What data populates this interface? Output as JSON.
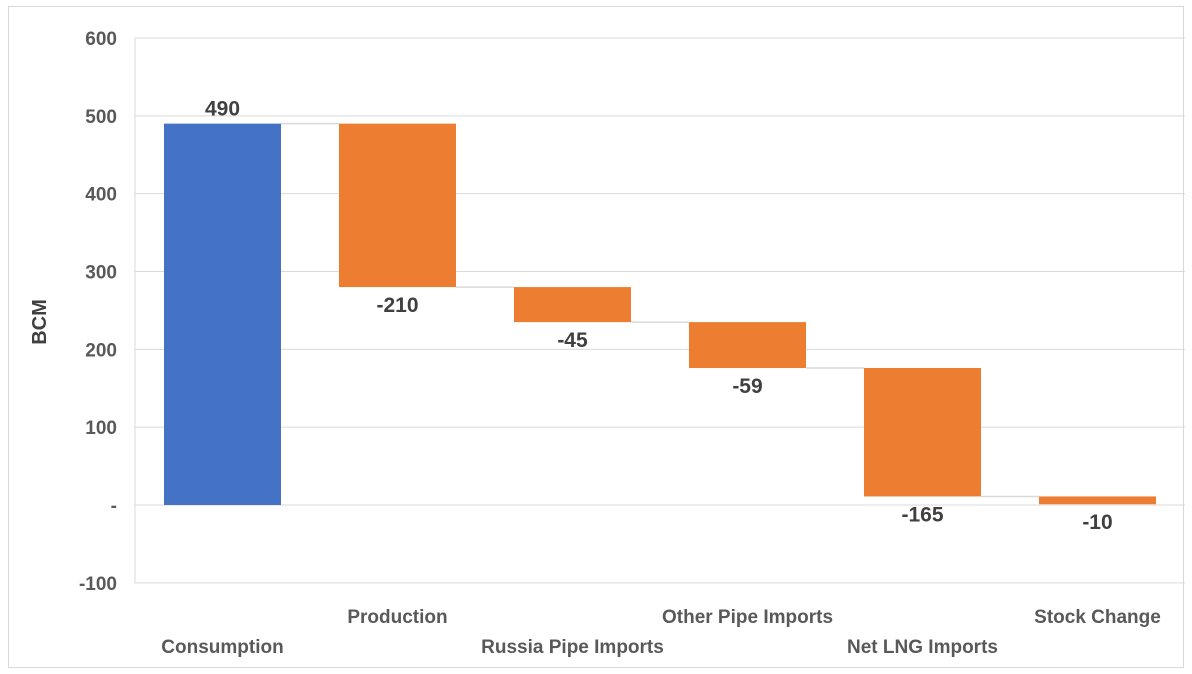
{
  "chart_data": {
    "type": "waterfall",
    "title": "",
    "xlabel": "",
    "ylabel": "BCM",
    "ylim": [
      -100,
      600
    ],
    "yticks": [
      {
        "value": -100,
        "label": "-100"
      },
      {
        "value": 0,
        "label": "-"
      },
      {
        "value": 100,
        "label": "100"
      },
      {
        "value": 200,
        "label": "200"
      },
      {
        "value": 300,
        "label": "300"
      },
      {
        "value": 400,
        "label": "400"
      },
      {
        "value": 500,
        "label": "500"
      },
      {
        "value": 600,
        "label": "600"
      }
    ],
    "grid": true,
    "legend": "none",
    "categories": [
      "Consumption",
      "Production",
      "Russia Pipe Imports",
      "Other Pipe Imports",
      "Net LNG Imports",
      "Stock Change"
    ],
    "values": [
      490,
      -210,
      -45,
      -59,
      -165,
      -10
    ],
    "value_labels": [
      "490",
      "-210",
      "-45",
      "-59",
      "-165",
      "-10"
    ],
    "bar_kinds": [
      "total",
      "decrease",
      "decrease",
      "decrease",
      "decrease",
      "decrease"
    ],
    "colors": {
      "total": "#4472C4",
      "decrease": "#ED7D31",
      "grid": "#d9d9d9",
      "connector": "#d9d9d9"
    }
  }
}
